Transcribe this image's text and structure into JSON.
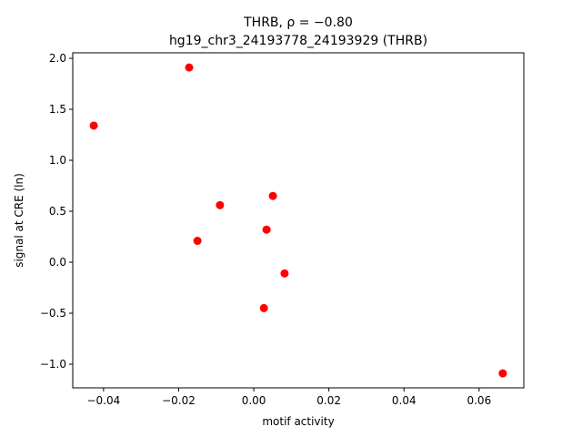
{
  "chart_data": {
    "type": "scatter",
    "title": "THRB, ρ = −0.80",
    "subtitle": "hg19_chr3_24193778_24193929 (THRB)",
    "x_label": "motif activity",
    "y_label": "signal at CRE (ln)",
    "color": "#ff0000",
    "x": [
      -0.0426,
      -0.0172,
      -0.009,
      -0.015,
      0.0051,
      0.0034,
      0.0082,
      0.0027,
      0.0663
    ],
    "y": [
      1.34,
      1.91,
      0.56,
      0.21,
      0.65,
      0.32,
      -0.11,
      -0.45,
      -1.09
    ],
    "xlim": [
      -0.0482,
      0.0719
    ],
    "ylim": [
      -1.232,
      2.054
    ],
    "xticks": [
      {
        "value": -0.04,
        "label": "−0.04"
      },
      {
        "value": -0.02,
        "label": "−0.02"
      },
      {
        "value": 0,
        "label": "0.00"
      },
      {
        "value": 0.02,
        "label": "0.02"
      },
      {
        "value": 0.04,
        "label": "0.04"
      },
      {
        "value": 0.06,
        "label": "0.06"
      }
    ],
    "yticks": [
      {
        "value": -1,
        "label": "−1.0"
      },
      {
        "value": -0.5,
        "label": "−0.5"
      },
      {
        "value": 0,
        "label": "0.0"
      },
      {
        "value": 0.5,
        "label": "0.5"
      },
      {
        "value": 1,
        "label": "1.0"
      },
      {
        "value": 1.5,
        "label": "1.5"
      },
      {
        "value": 2,
        "label": "2.0"
      }
    ]
  }
}
